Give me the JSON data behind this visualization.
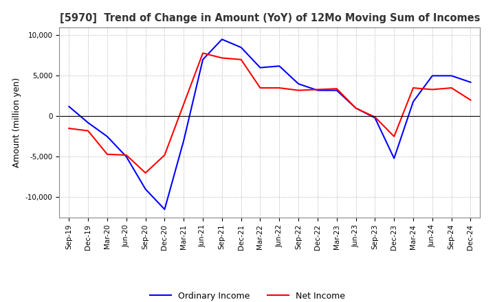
{
  "title": "[5970]  Trend of Change in Amount (YoY) of 12Mo Moving Sum of Incomes",
  "ylabel": "Amount (million yen)",
  "legend": [
    "Ordinary Income",
    "Net Income"
  ],
  "line_colors": [
    "#0000ff",
    "#ff0000"
  ],
  "x_labels": [
    "Sep-19",
    "Dec-19",
    "Mar-20",
    "Jun-20",
    "Sep-20",
    "Dec-20",
    "Mar-21",
    "Jun-21",
    "Sep-21",
    "Dec-21",
    "Mar-22",
    "Jun-22",
    "Sep-22",
    "Dec-22",
    "Mar-23",
    "Jun-23",
    "Sep-23",
    "Dec-23",
    "Mar-24",
    "Jun-24",
    "Sep-24",
    "Dec-24"
  ],
  "ordinary_income": [
    1200,
    -800,
    -2500,
    -5000,
    -9000,
    -11500,
    -3000,
    7000,
    9500,
    8500,
    6000,
    6200,
    4000,
    3200,
    3200,
    1000,
    -200,
    -5200,
    1800,
    5000,
    5000,
    4200
  ],
  "net_income": [
    -1500,
    -1800,
    -4700,
    -4800,
    -7000,
    -4800,
    1500,
    7800,
    7200,
    7000,
    3500,
    3500,
    3200,
    3300,
    3400,
    1000,
    -100,
    -2500,
    3500,
    3300,
    3500,
    2000
  ],
  "ylim": [
    -12500,
    11000
  ],
  "yticks": [
    -10000,
    -5000,
    0,
    5000,
    10000
  ],
  "background_color": "#ffffff",
  "grid_color": "#aaaaaa"
}
